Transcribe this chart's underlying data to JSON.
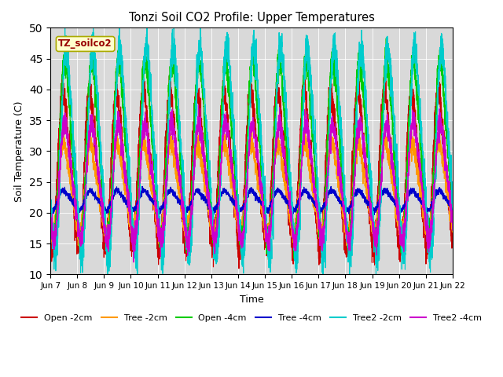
{
  "title": "Tonzi Soil CO2 Profile: Upper Temperatures",
  "xlabel": "Time",
  "ylabel": "Soil Temperature (C)",
  "ylim": [
    10,
    50
  ],
  "yticks": [
    10,
    15,
    20,
    25,
    30,
    35,
    40,
    45,
    50
  ],
  "xtick_labels": [
    "Jun 7",
    "Jun 8",
    "Jun 9",
    "Jun 10",
    "Jun 11",
    "Jun 12",
    "Jun 13",
    "Jun 14",
    "Jun 15",
    "Jun 16",
    "Jun 17",
    "Jun 18",
    "Jun 19",
    "Jun 20",
    "Jun 21",
    "Jun 22"
  ],
  "label_box_text": "TZ_soilco2",
  "label_box_color": "#ffffcc",
  "label_box_text_color": "#990000",
  "background_color": "#d9d9d9",
  "series": [
    {
      "label": "Open -2cm",
      "color": "#cc0000",
      "amplitude": 12,
      "baseline": 27,
      "phase": 0.12,
      "noise": 1.2
    },
    {
      "label": "Tree -2cm",
      "color": "#ff9900",
      "amplitude": 7,
      "baseline": 24,
      "phase": 0.1,
      "noise": 0.8
    },
    {
      "label": "Open -4cm",
      "color": "#00cc00",
      "amplitude": 14,
      "baseline": 30,
      "phase": 0.05,
      "noise": 1.2
    },
    {
      "label": "Tree -4cm",
      "color": "#0000cc",
      "amplitude": 1.5,
      "baseline": 22,
      "phase": 0.1,
      "noise": 0.25
    },
    {
      "label": "Tree2 -2cm",
      "color": "#00cccc",
      "amplitude": 16,
      "baseline": 30,
      "phase": 0.0,
      "noise": 1.5
    },
    {
      "label": "Tree2 -4cm",
      "color": "#cc00cc",
      "amplitude": 9,
      "baseline": 25,
      "phase": 0.05,
      "noise": 1.0
    }
  ],
  "n_days": 15,
  "points_per_day": 288,
  "figwidth": 6.4,
  "figheight": 4.8,
  "dpi": 100
}
